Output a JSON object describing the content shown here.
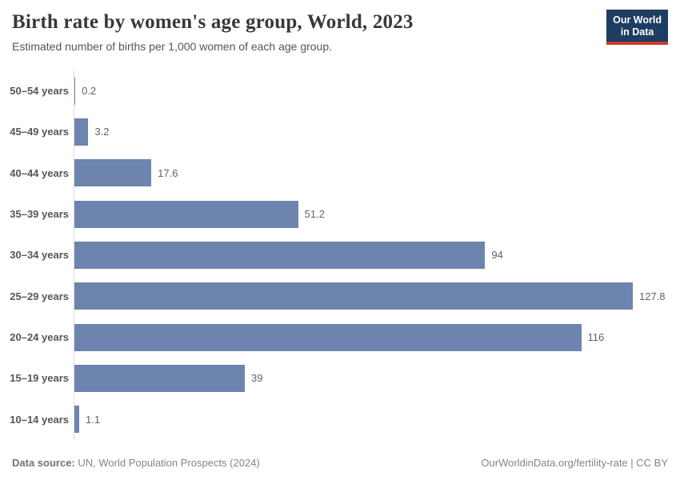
{
  "header": {
    "title": "Birth rate by women's age group, World, 2023",
    "subtitle": "Estimated number of births per 1,000 women of each age group."
  },
  "logo": {
    "line1": "Our World",
    "line2": "in Data"
  },
  "chart_data": {
    "type": "bar",
    "orientation": "horizontal",
    "title": "Birth rate by women's age group, World, 2023",
    "xlabel": "",
    "ylabel": "",
    "categories": [
      "50–54 years",
      "45–49 years",
      "40–44 years",
      "35–39 years",
      "30–34 years",
      "25–29 years",
      "20–24 years",
      "15–19 years",
      "10–14 years"
    ],
    "values": [
      0.2,
      3.2,
      17.6,
      51.2,
      94,
      127.8,
      116,
      39,
      1.1
    ],
    "value_labels": [
      "0.2",
      "3.2",
      "17.6",
      "51.2",
      "94",
      "127.8",
      "116",
      "39",
      "1.1"
    ],
    "xlim": [
      0,
      127.8
    ],
    "grid": false,
    "legend": false,
    "bar_color": "#6d84ae",
    "axis_line_color": "#dcdcdc"
  },
  "footer": {
    "datasource_label": "Data source:",
    "datasource_value": "UN, World Population Prospects (2024)",
    "link": "OurWorldinData.org/fertility-rate | CC BY"
  }
}
